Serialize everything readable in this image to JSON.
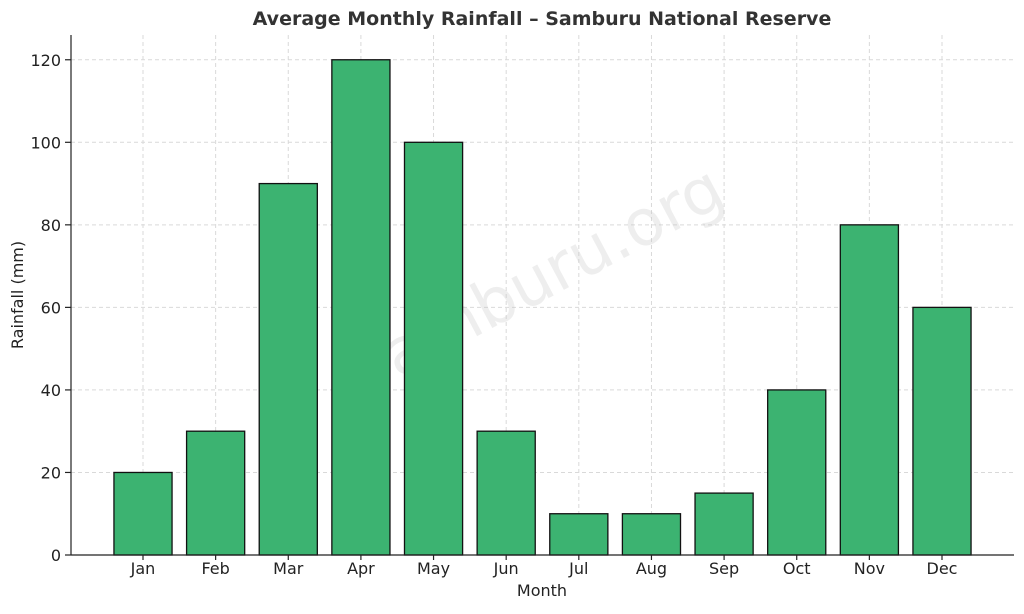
{
  "chart_data": {
    "type": "bar",
    "title": "Average Monthly Rainfall – Samburu National Reserve",
    "xlabel": "Month",
    "ylabel": "Rainfall (mm)",
    "categories": [
      "Jan",
      "Feb",
      "Mar",
      "Apr",
      "May",
      "Jun",
      "Jul",
      "Aug",
      "Sep",
      "Oct",
      "Nov",
      "Dec"
    ],
    "values": [
      20,
      30,
      90,
      120,
      100,
      30,
      10,
      10,
      15,
      40,
      80,
      60
    ],
    "ylim": [
      0,
      126
    ],
    "yticks": [
      0,
      20,
      40,
      60,
      80,
      100,
      120
    ],
    "grid": true,
    "bar_color": "#3cb371",
    "bar_edge_color": "#111111",
    "watermark": "Samburu.org"
  }
}
